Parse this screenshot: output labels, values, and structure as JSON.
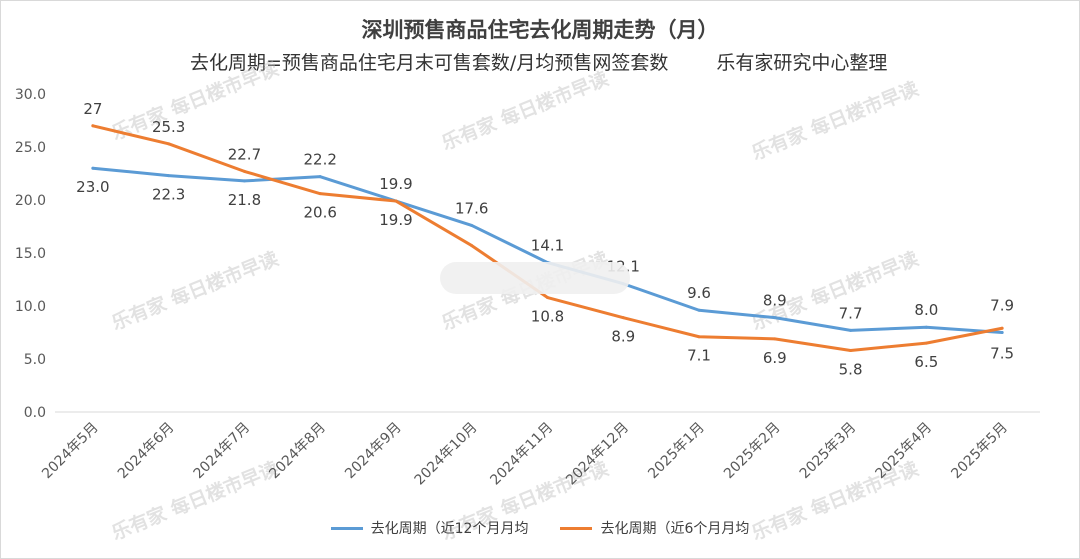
{
  "chart_data": {
    "type": "line",
    "title": "深圳预售商品住宅去化周期走势（月）",
    "subtitle": "去化周期=预售商品住宅月末可售套数/月均预售网签套数",
    "source": "乐有家研究中心整理",
    "categories": [
      "2024年5月",
      "2024年6月",
      "2024年7月",
      "2024年8月",
      "2024年9月",
      "2024年10月",
      "2024年11月",
      "2024年12月",
      "2025年1月",
      "2025年2月",
      "2025年3月",
      "2025年4月",
      "2025年5月"
    ],
    "ylim": [
      0,
      30
    ],
    "yticks": [
      "0.0",
      "5.0",
      "10.0",
      "15.0",
      "20.0",
      "25.0",
      "30.0"
    ],
    "series": [
      {
        "name": "去化周期（近12个月月均",
        "color": "#5b9bd5",
        "values": [
          23.0,
          22.3,
          21.8,
          22.2,
          19.9,
          17.6,
          14.1,
          12.1,
          9.6,
          8.9,
          7.7,
          8.0,
          7.5
        ],
        "labels": [
          "23.0",
          "22.3",
          "21.8",
          "22.2",
          "19.9",
          "17.6",
          "14.1",
          "12.1",
          "9.6",
          "8.9",
          "7.7",
          "8.0",
          "7.5"
        ]
      },
      {
        "name": "去化周期（近6个月月均",
        "color": "#ed7d31",
        "values": [
          27,
          25.3,
          22.7,
          20.6,
          19.9,
          15.7,
          10.8,
          8.9,
          7.1,
          6.9,
          5.8,
          6.5,
          7.9
        ],
        "labels": [
          "27",
          "25.3",
          "22.7",
          "20.6",
          "19.9",
          "",
          "10.8",
          "8.9",
          "7.1",
          "6.9",
          "5.8",
          "6.5",
          "7.9"
        ]
      }
    ],
    "watermark": {
      "brand": "乐有家",
      "text": "每日楼市早读"
    }
  }
}
